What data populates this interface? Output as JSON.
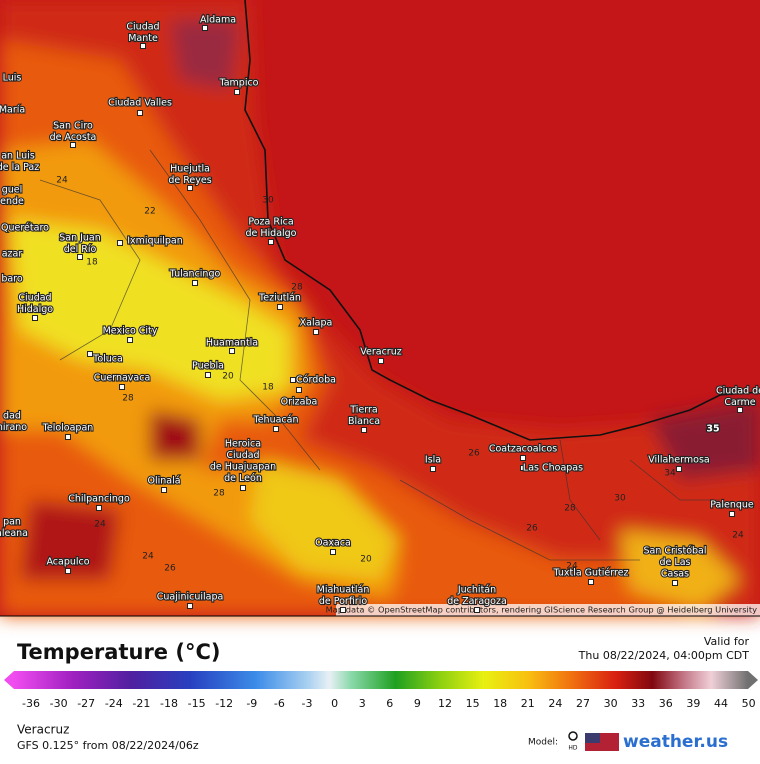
{
  "map": {
    "cities": [
      [
        "Aldama"
      ],
      [
        "Ciudad",
        "Mante"
      ],
      [
        "Tampico"
      ],
      [
        "Luis"
      ],
      [
        "María"
      ],
      [
        "Ciudad Valles"
      ],
      [
        "San Ciro",
        "de Acosta"
      ],
      [
        "an Luis",
        "de la Paz"
      ],
      [
        "Huejutla",
        "de Reyes"
      ],
      [
        "guel",
        "ende"
      ],
      [
        "Poza Rica",
        "de Hidalgo"
      ],
      [
        "Querétaro"
      ],
      [
        "San Juan",
        "del Río"
      ],
      [
        "Ixmiquilpan"
      ],
      [
        "azar"
      ],
      [
        "baro"
      ],
      [
        "Tulancingo"
      ],
      [
        "Teziutlán"
      ],
      [
        "Ciudad",
        "Hidalgo"
      ],
      [
        "Xalapa"
      ],
      [
        "Mexico City"
      ],
      [
        "Huamantla"
      ],
      [
        "Veracruz"
      ],
      [
        "Toluca"
      ],
      [
        "Puebla"
      ],
      [
        "Córdoba"
      ],
      [
        "Cuernavaca"
      ],
      [
        "Orizaba"
      ],
      [
        "Tierra",
        "Blanca"
      ],
      [
        "Tehuacán"
      ],
      [
        "Teloloapan"
      ],
      [
        "dad",
        "hirano"
      ],
      [
        "Heroica",
        "Ciudad",
        "de Huajuapan",
        "de León"
      ],
      [
        "Coatzacoalcos"
      ],
      [
        "Isla"
      ],
      [
        "Las Choapas"
      ],
      [
        "Villahermosa"
      ],
      [
        "Ciudad de",
        "Carme"
      ],
      [
        "Olinalá"
      ],
      [
        "Chilpancingo"
      ],
      [
        "Palenque"
      ],
      [
        "pan",
        "aleana"
      ],
      [
        "Oaxaca"
      ],
      [
        "San Cristóbal",
        "de Las",
        "Casas"
      ],
      [
        "Acapulco"
      ],
      [
        "Tuxtla Gutiérrez"
      ],
      [
        "Cuajinicuilapa"
      ],
      [
        "Miahuatlán",
        "de Porfirio"
      ],
      [
        "Juchitán",
        "de Zaragoza"
      ]
    ],
    "contour_labels": [
      30,
      24,
      22,
      18,
      28,
      20,
      18,
      28,
      28,
      24,
      24,
      26,
      20,
      26,
      28,
      26,
      30,
      34,
      35,
      24,
      24
    ],
    "attribution": "Map data © OpenStreetMap contributors, rendering GIScience Research Group @ Heidelberg University"
  },
  "legend": {
    "title": "Temperature (°C)",
    "valid_label": "Valid for",
    "valid_time": "Thu 08/22/2024, 04:00pm CDT",
    "ticks": [
      -36,
      -30,
      -27,
      -24,
      -21,
      -18,
      -15,
      -12,
      -9,
      -6,
      -3,
      0,
      3,
      6,
      9,
      12,
      15,
      18,
      21,
      24,
      27,
      30,
      33,
      36,
      39,
      44,
      50
    ],
    "location": "Veracruz",
    "model_run": "GFS 0.125° from  08/22/2024/06z",
    "model_label": "Model:",
    "model_badge": "HD",
    "brand": "weather.us"
  }
}
